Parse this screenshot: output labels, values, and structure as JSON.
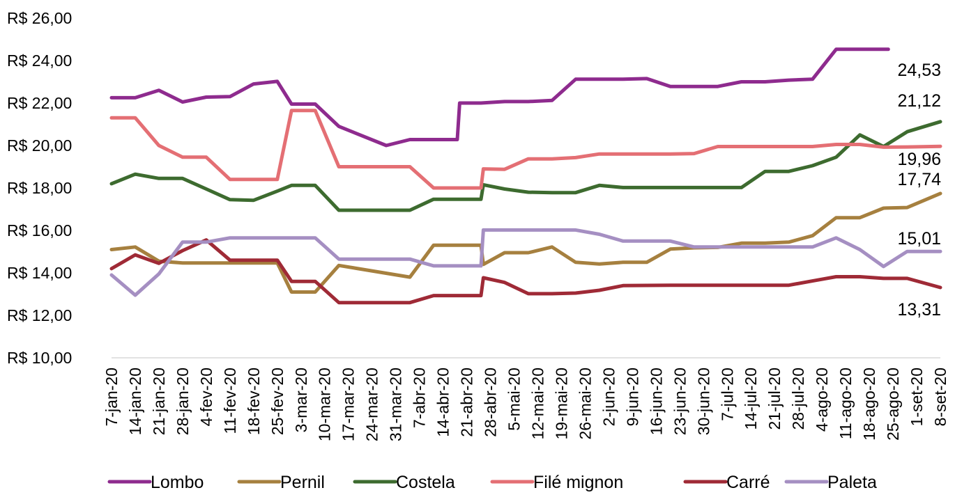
{
  "chart_data": {
    "type": "line",
    "title": "",
    "xlabel": "",
    "ylabel": "",
    "ylim": [
      10,
      26
    ],
    "y_ticks": [
      10,
      12,
      14,
      16,
      18,
      20,
      22,
      24,
      26
    ],
    "y_tick_labels": [
      "R$ 10,00",
      "R$ 12,00",
      "R$ 14,00",
      "R$ 16,00",
      "R$ 18,00",
      "R$ 20,00",
      "R$ 22,00",
      "R$ 24,00",
      "R$ 26,00"
    ],
    "grid": false,
    "legend_position": "bottom",
    "categories": [
      "7-jan-20",
      "14-jan-20",
      "21-jan-20",
      "28-jan-20",
      "4-fev-20",
      "11-fev-20",
      "18-fev-20",
      "25-fev-20",
      "3-mar-20",
      "10-mar-20",
      "17-mar-20",
      "24-mar-20",
      "31-mar-20",
      "7-abr-20",
      "14-abr-20",
      "21-abr-20",
      "28-abr-20",
      "5-mai-20",
      "12-mai-20",
      "19-mai-20",
      "26-mai-20",
      "2-jun-20",
      "9-jun-20",
      "16-jun-20",
      "23-jun-20",
      "30-jun-20",
      "7-jul-20",
      "14-jul-20",
      "21-jul-20",
      "28-jul-20",
      "4-ago-20",
      "11-ago-20",
      "18-ago-20",
      "25-ago-20",
      "1-set-20",
      "8-set-20"
    ],
    "series": [
      {
        "name": "Lombo",
        "color": "#8e2b8e",
        "values": [
          [
            0,
            22.25
          ],
          [
            1,
            22.25
          ],
          [
            2,
            22.6
          ],
          [
            3,
            22.05
          ],
          [
            4,
            22.28
          ],
          [
            5,
            22.3
          ],
          [
            6,
            22.9
          ],
          [
            7,
            23.02
          ],
          [
            7.6,
            21.95
          ],
          [
            8.6,
            21.95
          ],
          [
            9.6,
            20.9
          ],
          [
            11.6,
            20.0
          ],
          [
            12.6,
            20.28
          ],
          [
            14.6,
            20.28
          ],
          [
            14.7,
            22.0
          ],
          [
            15.6,
            22.0
          ],
          [
            16.6,
            22.07
          ],
          [
            17.6,
            22.07
          ],
          [
            18.6,
            22.12
          ],
          [
            19.6,
            23.12
          ],
          [
            21.6,
            23.12
          ],
          [
            22.6,
            23.15
          ],
          [
            23.6,
            22.78
          ],
          [
            25.6,
            22.78
          ],
          [
            26.6,
            23.0
          ],
          [
            27.6,
            23.0
          ],
          [
            28.6,
            23.08
          ],
          [
            29.6,
            23.12
          ],
          [
            30.6,
            24.53
          ],
          [
            32.8,
            24.53
          ]
        ]
      },
      {
        "name": "Pernil",
        "color": "#a6803f",
        "values": [
          [
            0,
            15.1
          ],
          [
            1,
            15.22
          ],
          [
            2,
            14.55
          ],
          [
            3,
            14.47
          ],
          [
            4,
            14.47
          ],
          [
            5,
            14.47
          ],
          [
            6,
            14.47
          ],
          [
            7,
            14.47
          ],
          [
            7.6,
            13.1
          ],
          [
            8.6,
            13.1
          ],
          [
            9.6,
            14.35
          ],
          [
            12.6,
            13.8
          ],
          [
            13.6,
            15.3
          ],
          [
            14.6,
            15.3
          ],
          [
            15.6,
            15.3
          ],
          [
            15.7,
            14.4
          ],
          [
            16.6,
            14.95
          ],
          [
            17.6,
            14.95
          ],
          [
            18.6,
            15.22
          ],
          [
            19.6,
            14.5
          ],
          [
            20.6,
            14.42
          ],
          [
            21.6,
            14.5
          ],
          [
            22.6,
            14.5
          ],
          [
            23.6,
            15.12
          ],
          [
            24.6,
            15.18
          ],
          [
            25.6,
            15.2
          ],
          [
            26.6,
            15.4
          ],
          [
            27.6,
            15.4
          ],
          [
            28.6,
            15.45
          ],
          [
            29.6,
            15.75
          ],
          [
            30.6,
            16.6
          ],
          [
            31.6,
            16.6
          ],
          [
            32.6,
            17.05
          ],
          [
            33.6,
            17.08
          ],
          [
            35,
            17.74
          ]
        ]
      },
      {
        "name": "Costela",
        "color": "#3d6b2f",
        "values": [
          [
            0,
            18.2
          ],
          [
            1,
            18.65
          ],
          [
            2,
            18.45
          ],
          [
            3,
            18.45
          ],
          [
            4,
            17.95
          ],
          [
            5,
            17.45
          ],
          [
            6,
            17.42
          ],
          [
            7,
            17.85
          ],
          [
            7.6,
            18.12
          ],
          [
            8.6,
            18.12
          ],
          [
            9.6,
            16.95
          ],
          [
            12.6,
            16.95
          ],
          [
            13.6,
            17.47
          ],
          [
            15.6,
            17.47
          ],
          [
            15.7,
            18.15
          ],
          [
            16.6,
            17.95
          ],
          [
            17.6,
            17.8
          ],
          [
            18.6,
            17.78
          ],
          [
            19.6,
            17.78
          ],
          [
            20.6,
            18.12
          ],
          [
            21.6,
            18.02
          ],
          [
            23.6,
            18.02
          ],
          [
            26.6,
            18.02
          ],
          [
            27.6,
            18.78
          ],
          [
            28.6,
            18.78
          ],
          [
            29.6,
            19.05
          ],
          [
            30.6,
            19.45
          ],
          [
            31.6,
            20.5
          ],
          [
            32.6,
            19.95
          ],
          [
            33.6,
            20.65
          ],
          [
            35,
            21.12
          ]
        ]
      },
      {
        "name": "Filé mignon",
        "color": "#e46f74",
        "values": [
          [
            0,
            21.3
          ],
          [
            1,
            21.3
          ],
          [
            2,
            20.0
          ],
          [
            3,
            19.45
          ],
          [
            4,
            19.45
          ],
          [
            5,
            18.4
          ],
          [
            6,
            18.4
          ],
          [
            7,
            18.4
          ],
          [
            7.6,
            21.65
          ],
          [
            8.6,
            21.65
          ],
          [
            9.6,
            19.0
          ],
          [
            12.6,
            19.0
          ],
          [
            13.6,
            18.0
          ],
          [
            15.6,
            18.0
          ],
          [
            15.7,
            18.9
          ],
          [
            16.6,
            18.88
          ],
          [
            17.6,
            19.37
          ],
          [
            18.6,
            19.37
          ],
          [
            19.6,
            19.43
          ],
          [
            20.6,
            19.6
          ],
          [
            23.6,
            19.6
          ],
          [
            24.6,
            19.62
          ],
          [
            25.6,
            19.95
          ],
          [
            29.6,
            19.95
          ],
          [
            30.6,
            20.05
          ],
          [
            31.6,
            20.05
          ],
          [
            32.6,
            19.92
          ],
          [
            33.6,
            19.93
          ],
          [
            35,
            19.96
          ]
        ]
      },
      {
        "name": "Carré",
        "color": "#9f2a36",
        "values": [
          [
            0,
            14.2
          ],
          [
            1,
            14.85
          ],
          [
            2,
            14.45
          ],
          [
            3,
            15.05
          ],
          [
            4,
            15.55
          ],
          [
            5,
            14.6
          ],
          [
            6,
            14.6
          ],
          [
            7,
            14.6
          ],
          [
            7.6,
            13.6
          ],
          [
            8.6,
            13.6
          ],
          [
            9.6,
            12.6
          ],
          [
            12.6,
            12.6
          ],
          [
            13.6,
            12.93
          ],
          [
            15.6,
            12.93
          ],
          [
            15.7,
            13.77
          ],
          [
            16.6,
            13.55
          ],
          [
            17.6,
            13.02
          ],
          [
            18.6,
            13.02
          ],
          [
            19.6,
            13.05
          ],
          [
            20.6,
            13.18
          ],
          [
            21.6,
            13.4
          ],
          [
            23.6,
            13.42
          ],
          [
            26.6,
            13.42
          ],
          [
            28.6,
            13.42
          ],
          [
            29.6,
            13.62
          ],
          [
            30.6,
            13.82
          ],
          [
            31.6,
            13.82
          ],
          [
            32.6,
            13.74
          ],
          [
            33.6,
            13.74
          ],
          [
            35,
            13.31
          ]
        ]
      },
      {
        "name": "Paleta",
        "color": "#a58fc2",
        "values": [
          [
            0,
            13.9
          ],
          [
            1,
            12.95
          ],
          [
            2,
            13.95
          ],
          [
            3,
            15.45
          ],
          [
            4,
            15.45
          ],
          [
            5,
            15.65
          ],
          [
            6,
            15.65
          ],
          [
            7,
            15.65
          ],
          [
            7.6,
            15.65
          ],
          [
            8.6,
            15.65
          ],
          [
            9.6,
            14.65
          ],
          [
            12.6,
            14.65
          ],
          [
            13.6,
            14.33
          ],
          [
            15.6,
            14.33
          ],
          [
            15.7,
            16.02
          ],
          [
            16.6,
            16.02
          ],
          [
            19.6,
            16.02
          ],
          [
            20.6,
            15.82
          ],
          [
            21.6,
            15.5
          ],
          [
            23.6,
            15.5
          ],
          [
            24.6,
            15.22
          ],
          [
            26.6,
            15.22
          ],
          [
            27.6,
            15.22
          ],
          [
            29.6,
            15.22
          ],
          [
            30.6,
            15.65
          ],
          [
            31.6,
            15.1
          ],
          [
            32.6,
            14.3
          ],
          [
            33.6,
            15.01
          ],
          [
            35,
            15.01
          ]
        ]
      }
    ],
    "end_labels": [
      {
        "series": "Lombo",
        "text": "24,53",
        "value": 24.53
      },
      {
        "series": "Costela",
        "text": "21,12",
        "value": 21.12
      },
      {
        "series": "Filé mignon",
        "text": "19,96",
        "value": 19.96
      },
      {
        "series": "Pernil",
        "text": "17,74",
        "value": 17.74
      },
      {
        "series": "Paleta",
        "text": "15,01",
        "value": 15.01
      },
      {
        "series": "Carré",
        "text": "13,31",
        "value": 13.31
      }
    ]
  }
}
